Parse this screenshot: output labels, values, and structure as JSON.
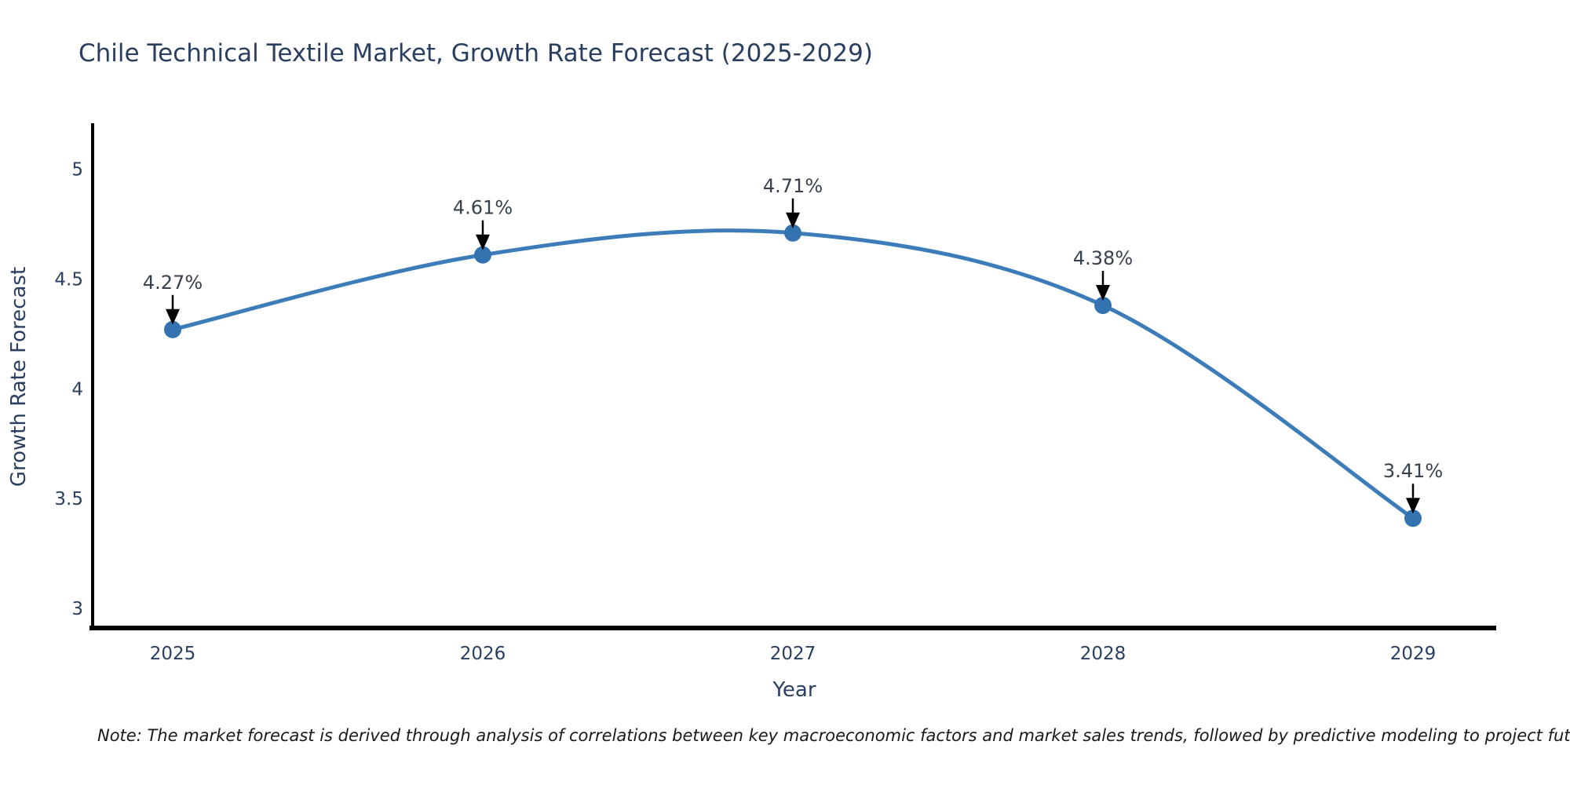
{
  "chart_data": {
    "type": "line",
    "title": "Chile Technical Textile Market, Growth Rate Forecast (2025-2029)",
    "xlabel": "Year",
    "ylabel": "Growth Rate Forecast",
    "categories": [
      "2025",
      "2026",
      "2027",
      "2028",
      "2029"
    ],
    "values": [
      4.27,
      4.61,
      4.71,
      4.38,
      3.41
    ],
    "point_labels": [
      "4.27%",
      "4.61%",
      "4.71%",
      "4.38%",
      "3.41%"
    ],
    "yticks": [
      3,
      3.5,
      4,
      4.5,
      5
    ],
    "ylim": [
      2.91,
      5.21
    ],
    "line_shape": "spline",
    "grid": false,
    "legend": false,
    "line_color": "#3C7DB9",
    "marker_color": "#3473AF",
    "arrow_color": "#000000",
    "axis_color": "#000000",
    "text_color": "#2a3f5f"
  },
  "note": "Note: The market forecast is derived through analysis of correlations between key macroeconomic factors and market sales trends, followed by predictive modeling to project future sales"
}
